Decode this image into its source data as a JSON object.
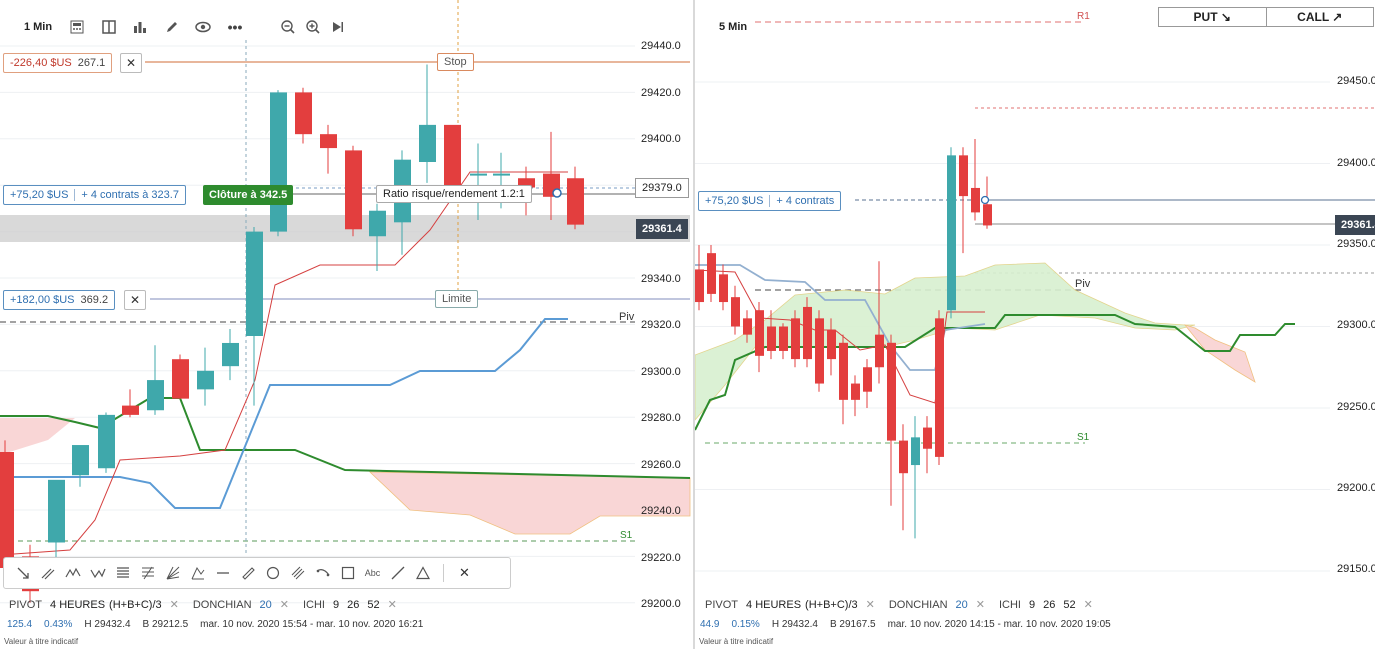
{
  "left": {
    "interval": "1 Min",
    "price_axis": [
      "29440.0",
      "29420.0",
      "29400.0",
      "29379.0",
      "29361.4",
      "29340.0",
      "29320.0",
      "29300.0",
      "29280.0",
      "29260.0",
      "29240.0",
      "29220.0",
      "29200.0"
    ],
    "stop_order": {
      "pnl": "-226,40 $US",
      "price": "267.1",
      "tag": "Stop"
    },
    "position": {
      "pnl": "+75,20 $US",
      "contracts": "+ 4 contrats à 323.7",
      "close_label": "Clôture à 342.5"
    },
    "ratio_tooltip": "Ratio risque/rendement 1.2:1",
    "limit_order": {
      "pnl": "+182,00 $US",
      "price": "369.2",
      "tag": "Limite"
    },
    "current_price": "29361.4",
    "entry_price": "29379.0",
    "pivot_label": "Piv",
    "s1_label": "S1",
    "close_x": "✕",
    "indicators": {
      "pivot_name": "PIVOT",
      "pivot_params": "4 HEURES",
      "pivot_formula": "(H+B+C)/3",
      "donchian_name": "DONCHIAN",
      "donchian_param": "20",
      "ichi_name": "ICHI",
      "ichi_p1": "9",
      "ichi_p2": "26",
      "ichi_p3": "52",
      "remove": "✕"
    },
    "info": {
      "change": "125.4",
      "pct": "0.43%",
      "high": "H 29432.4",
      "low": "B 29212.5",
      "range": "mar. 10 nov. 2020 15:54 - mar. 10 nov. 2020 16:21"
    },
    "disclaimer": "Valeur à titre indicatif"
  },
  "right": {
    "interval": "5 Min",
    "put_label": "PUT ↘",
    "call_label": "CALL ↗",
    "price_axis": [
      "29450.0",
      "29400.0",
      "29350.0",
      "29300.0",
      "29250.0",
      "29200.0",
      "29150.0"
    ],
    "current_price": "29361.4",
    "position": {
      "pnl": "+75,20 $US",
      "contracts": "+ 4 contrats"
    },
    "r1_label": "R1",
    "pivot_label": "Piv",
    "s1_label": "S1",
    "indicators": {
      "pivot_name": "PIVOT",
      "pivot_params": "4 HEURES",
      "pivot_formula": "(H+B+C)/3",
      "donchian_name": "DONCHIAN",
      "donchian_param": "20",
      "ichi_name": "ICHI",
      "ichi_p1": "9",
      "ichi_p2": "26",
      "ichi_p3": "52",
      "remove": "✕"
    },
    "info": {
      "change": "44.9",
      "pct": "0.15%",
      "high": "H 29432.4",
      "low": "B 29167.5",
      "range": "mar. 10 nov. 2020 14:15 - mar. 10 nov. 2020 19:05"
    },
    "disclaimer": "Valeur à titre indicatif"
  },
  "drawing_tools": {
    "text_tool": "Abc",
    "close": "✕"
  },
  "colors": {
    "bull": "#3fa8ab",
    "bear": "#e33e3e",
    "ichimoku_green": "#2e8b2e",
    "donchian_blue": "#5b9bd5",
    "cloud_green": "#d8f0d0",
    "cloud_red": "#f9d6d6",
    "accent_green": "#2e8b2e"
  }
}
